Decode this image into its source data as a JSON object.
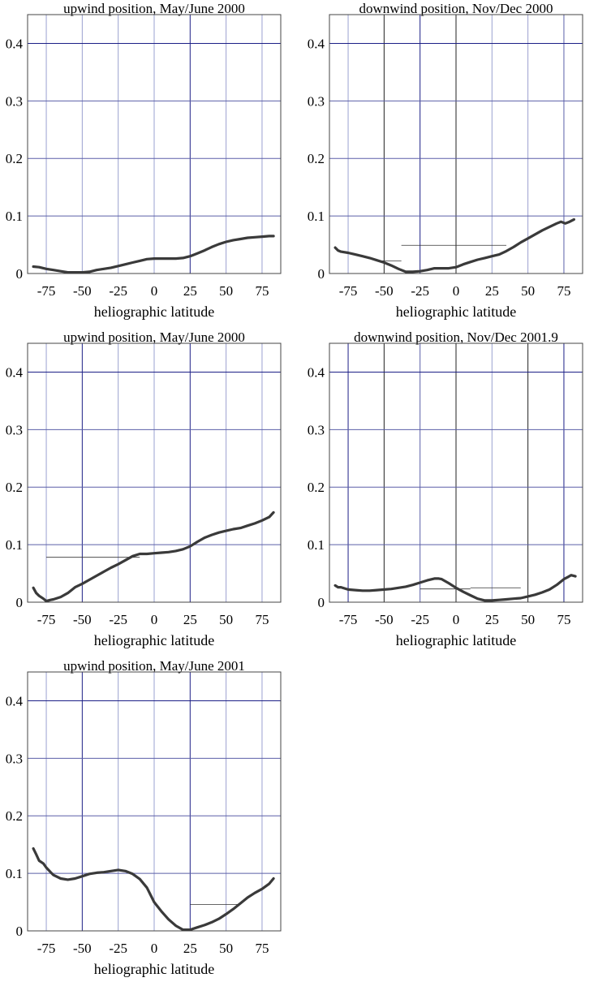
{
  "chart_data": [
    {
      "type": "line",
      "title": "upwind position, May/June 2000",
      "xlabel": "heliographic latitude",
      "xlim": [
        -88,
        88
      ],
      "ylim": [
        0,
        0.45
      ],
      "xticks": [
        -75,
        -50,
        -25,
        0,
        25,
        50,
        75
      ],
      "yticks": [
        0,
        0.1,
        0.2,
        0.3,
        0.4
      ],
      "xtick_labels": [
        "-75",
        "-50",
        "-25",
        "0",
        "25",
        "50",
        "75"
      ],
      "ytick_labels": [
        "0",
        "0.1",
        "0.2",
        "0.3",
        "0.4"
      ],
      "gridlines_x": [
        {
          "x": -75,
          "style": "light"
        },
        {
          "x": -50,
          "style": "light"
        },
        {
          "x": -25,
          "style": "light"
        },
        {
          "x": 0,
          "style": "light"
        },
        {
          "x": 25,
          "style": "dark"
        },
        {
          "x": 50,
          "style": "light"
        },
        {
          "x": 75,
          "style": "light"
        }
      ],
      "gridlines_y": [
        {
          "y": 0.1,
          "style": "medium"
        },
        {
          "y": 0.2,
          "style": "medium"
        },
        {
          "y": 0.3,
          "style": "medium"
        },
        {
          "y": 0.4,
          "style": "dark"
        }
      ],
      "segments": [],
      "series": [
        {
          "x": [
            -84,
            -80,
            -75,
            -70,
            -65,
            -60,
            -55,
            -50,
            -45,
            -40,
            -35,
            -30,
            -25,
            -20,
            -15,
            -10,
            -5,
            0,
            5,
            10,
            15,
            20,
            25,
            30,
            35,
            40,
            45,
            50,
            55,
            60,
            65,
            70,
            75,
            80,
            83
          ],
          "y": [
            0.012,
            0.011,
            0.008,
            0.006,
            0.004,
            0.002,
            0.002,
            0.002,
            0.003,
            0.006,
            0.008,
            0.01,
            0.013,
            0.016,
            0.019,
            0.022,
            0.025,
            0.026,
            0.026,
            0.026,
            0.026,
            0.027,
            0.03,
            0.035,
            0.04,
            0.046,
            0.051,
            0.055,
            0.058,
            0.06,
            0.062,
            0.063,
            0.064,
            0.065,
            0.065
          ]
        }
      ]
    },
    {
      "type": "line",
      "title": "downwind position, Nov/Dec 2000",
      "xlabel": "heliographic latitude",
      "xlim": [
        -88,
        88
      ],
      "ylim": [
        0,
        0.45
      ],
      "xticks": [
        -75,
        -50,
        -25,
        0,
        25,
        50,
        75
      ],
      "yticks": [
        0,
        0.1,
        0.2,
        0.3,
        0.4
      ],
      "xtick_labels": [
        "-75",
        "-50",
        "-25",
        "0",
        "25",
        "50",
        "75"
      ],
      "ytick_labels": [
        "0",
        "0.1",
        "0.2",
        "0.3",
        "0.4"
      ],
      "gridlines_x": [
        {
          "x": -75,
          "style": "light"
        },
        {
          "x": -50,
          "style": "black"
        },
        {
          "x": -25,
          "style": "dark"
        },
        {
          "x": 0,
          "style": "black"
        },
        {
          "x": 25,
          "style": "light"
        },
        {
          "x": 50,
          "style": "light"
        },
        {
          "x": 75,
          "style": "medium"
        }
      ],
      "gridlines_y": [
        {
          "y": 0.1,
          "style": "medium"
        },
        {
          "y": 0.2,
          "style": "medium"
        },
        {
          "y": 0.3,
          "style": "medium"
        },
        {
          "y": 0.4,
          "style": "dark"
        }
      ],
      "segments": [
        {
          "x1": -55,
          "x2": -38,
          "y": 0.022
        },
        {
          "x1": -38,
          "x2": 35,
          "y": 0.049
        }
      ],
      "series": [
        {
          "x": [
            -84,
            -82,
            -80,
            -75,
            -70,
            -65,
            -60,
            -55,
            -50,
            -45,
            -40,
            -35,
            -30,
            -25,
            -20,
            -15,
            -10,
            -5,
            0,
            5,
            10,
            15,
            20,
            25,
            30,
            35,
            40,
            45,
            50,
            55,
            60,
            65,
            70,
            73,
            76,
            79,
            82
          ],
          "y": [
            0.045,
            0.04,
            0.038,
            0.036,
            0.033,
            0.03,
            0.027,
            0.023,
            0.019,
            0.014,
            0.008,
            0.003,
            0.003,
            0.004,
            0.006,
            0.009,
            0.009,
            0.009,
            0.011,
            0.016,
            0.02,
            0.024,
            0.027,
            0.03,
            0.033,
            0.039,
            0.046,
            0.054,
            0.061,
            0.068,
            0.075,
            0.081,
            0.087,
            0.09,
            0.087,
            0.09,
            0.094
          ]
        }
      ]
    },
    {
      "type": "line",
      "title": "upwind position, May/June 2000",
      "xlabel": "heliographic latitude",
      "xlim": [
        -88,
        88
      ],
      "ylim": [
        0,
        0.45
      ],
      "xticks": [
        -75,
        -50,
        -25,
        0,
        25,
        50,
        75
      ],
      "yticks": [
        0,
        0.1,
        0.2,
        0.3,
        0.4
      ],
      "xtick_labels": [
        "-75",
        "-50",
        "-25",
        "0",
        "25",
        "50",
        "75"
      ],
      "ytick_labels": [
        "0",
        "0.1",
        "0.2",
        "0.3",
        "0.4"
      ],
      "gridlines_x": [
        {
          "x": -75,
          "style": "light"
        },
        {
          "x": -50,
          "style": "dark"
        },
        {
          "x": -25,
          "style": "light"
        },
        {
          "x": 0,
          "style": "light"
        },
        {
          "x": 25,
          "style": "dark"
        },
        {
          "x": 50,
          "style": "light"
        },
        {
          "x": 75,
          "style": "light"
        }
      ],
      "gridlines_y": [
        {
          "y": 0.1,
          "style": "medium"
        },
        {
          "y": 0.2,
          "style": "medium"
        },
        {
          "y": 0.3,
          "style": "medium"
        },
        {
          "y": 0.4,
          "style": "dark"
        }
      ],
      "segments": [
        {
          "x1": -75,
          "x2": -10,
          "y": 0.078
        }
      ],
      "series": [
        {
          "x": [
            -84,
            -82,
            -80,
            -77,
            -75,
            -72,
            -70,
            -65,
            -60,
            -55,
            -50,
            -45,
            -40,
            -35,
            -30,
            -25,
            -20,
            -15,
            -10,
            -5,
            0,
            5,
            10,
            15,
            20,
            25,
            30,
            35,
            40,
            45,
            50,
            55,
            60,
            65,
            70,
            75,
            80,
            83
          ],
          "y": [
            0.025,
            0.016,
            0.011,
            0.006,
            0.002,
            0.004,
            0.005,
            0.009,
            0.016,
            0.026,
            0.032,
            0.039,
            0.046,
            0.053,
            0.06,
            0.066,
            0.073,
            0.08,
            0.084,
            0.084,
            0.085,
            0.086,
            0.087,
            0.089,
            0.092,
            0.097,
            0.105,
            0.112,
            0.117,
            0.121,
            0.124,
            0.127,
            0.129,
            0.133,
            0.137,
            0.142,
            0.148,
            0.156
          ]
        }
      ]
    },
    {
      "type": "line",
      "title": "downwind position, Nov/Dec 2001.9",
      "xlabel": "heliographic latitude",
      "xlim": [
        -88,
        88
      ],
      "ylim": [
        0,
        0.45
      ],
      "xticks": [
        -75,
        -50,
        -25,
        0,
        25,
        50,
        75
      ],
      "yticks": [
        0,
        0.1,
        0.2,
        0.3,
        0.4
      ],
      "xtick_labels": [
        "-75",
        "-50",
        "-25",
        "0",
        "25",
        "50",
        "75"
      ],
      "ytick_labels": [
        "0",
        "0.1",
        "0.2",
        "0.3",
        "0.4"
      ],
      "gridlines_x": [
        {
          "x": -75,
          "style": "dark"
        },
        {
          "x": -50,
          "style": "black"
        },
        {
          "x": -25,
          "style": "medium"
        },
        {
          "x": 0,
          "style": "black"
        },
        {
          "x": 25,
          "style": "light"
        },
        {
          "x": 50,
          "style": "black"
        },
        {
          "x": 75,
          "style": "dark"
        }
      ],
      "gridlines_y": [
        {
          "y": 0.1,
          "style": "medium"
        },
        {
          "y": 0.2,
          "style": "medium"
        },
        {
          "y": 0.3,
          "style": "medium"
        },
        {
          "y": 0.4,
          "style": "dark"
        }
      ],
      "segments": [
        {
          "x1": -25,
          "x2": 10,
          "y": 0.023
        },
        {
          "x1": 10,
          "x2": 45,
          "y": 0.025
        }
      ],
      "series": [
        {
          "x": [
            -84,
            -82,
            -80,
            -75,
            -70,
            -65,
            -60,
            -55,
            -50,
            -45,
            -40,
            -35,
            -30,
            -25,
            -20,
            -15,
            -12,
            -10,
            -5,
            0,
            5,
            10,
            15,
            20,
            25,
            30,
            35,
            40,
            45,
            50,
            55,
            60,
            65,
            70,
            75,
            78,
            80,
            83
          ],
          "y": [
            0.029,
            0.026,
            0.026,
            0.022,
            0.021,
            0.02,
            0.02,
            0.021,
            0.022,
            0.023,
            0.025,
            0.027,
            0.03,
            0.034,
            0.038,
            0.041,
            0.041,
            0.04,
            0.033,
            0.025,
            0.018,
            0.012,
            0.006,
            0.003,
            0.003,
            0.004,
            0.005,
            0.006,
            0.007,
            0.01,
            0.013,
            0.017,
            0.022,
            0.03,
            0.04,
            0.044,
            0.047,
            0.045
          ]
        }
      ]
    },
    {
      "type": "line",
      "title": "upwind position, May/June 2001",
      "xlabel": "heliographic latitude",
      "xlim": [
        -88,
        88
      ],
      "ylim": [
        0,
        0.45
      ],
      "xticks": [
        -75,
        -50,
        -25,
        0,
        25,
        50,
        75
      ],
      "yticks": [
        0,
        0.1,
        0.2,
        0.3,
        0.4
      ],
      "xtick_labels": [
        "-75",
        "-50",
        "-25",
        "0",
        "25",
        "50",
        "75"
      ],
      "ytick_labels": [
        "0",
        "0.1",
        "0.2",
        "0.3",
        "0.4"
      ],
      "gridlines_x": [
        {
          "x": -75,
          "style": "light"
        },
        {
          "x": -50,
          "style": "dark"
        },
        {
          "x": -25,
          "style": "light"
        },
        {
          "x": 0,
          "style": "light"
        },
        {
          "x": 25,
          "style": "dark"
        },
        {
          "x": 50,
          "style": "light"
        },
        {
          "x": 75,
          "style": "light"
        }
      ],
      "gridlines_y": [
        {
          "y": 0.1,
          "style": "medium"
        },
        {
          "y": 0.2,
          "style": "medium"
        },
        {
          "y": 0.3,
          "style": "medium"
        },
        {
          "y": 0.4,
          "style": "dark"
        }
      ],
      "segments": [
        {
          "x1": 25,
          "x2": 60,
          "y": 0.046
        }
      ],
      "series": [
        {
          "x": [
            -84,
            -82,
            -80,
            -77,
            -75,
            -72,
            -70,
            -65,
            -60,
            -55,
            -50,
            -45,
            -40,
            -35,
            -30,
            -25,
            -20,
            -15,
            -10,
            -5,
            0,
            5,
            10,
            15,
            20,
            25,
            30,
            35,
            40,
            45,
            50,
            55,
            60,
            65,
            70,
            75,
            80,
            83
          ],
          "y": [
            0.143,
            0.133,
            0.122,
            0.117,
            0.11,
            0.102,
            0.097,
            0.091,
            0.089,
            0.091,
            0.095,
            0.099,
            0.101,
            0.102,
            0.104,
            0.106,
            0.104,
            0.099,
            0.09,
            0.075,
            0.05,
            0.034,
            0.02,
            0.009,
            0.002,
            0.002,
            0.006,
            0.01,
            0.015,
            0.021,
            0.029,
            0.038,
            0.048,
            0.058,
            0.066,
            0.073,
            0.082,
            0.091
          ]
        }
      ]
    }
  ]
}
